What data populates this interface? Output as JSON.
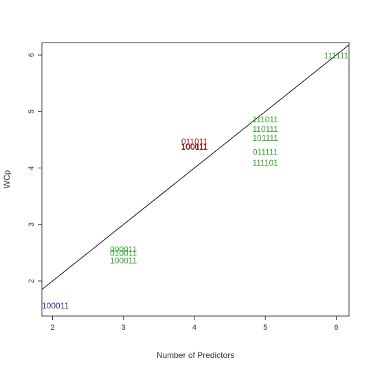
{
  "chart_data": {
    "type": "scatter",
    "title": "",
    "xlabel": "Number of Predictors",
    "ylabel": "WCp",
    "xlim": [
      1.85,
      6.18
    ],
    "ylim": [
      1.38,
      6.22
    ],
    "xticks": [
      "2",
      "3",
      "4",
      "5",
      "6"
    ],
    "yticks": [
      "2",
      "3",
      "4",
      "5",
      "6"
    ],
    "grid": false,
    "legend": "none",
    "reference_line": {
      "from": [
        1.85,
        1.85
      ],
      "to": [
        6.18,
        6.18
      ],
      "color": "#000000"
    },
    "colors": {
      "dark_red": "#8b1a1a",
      "green": "#33a02c",
      "blue": "#2b2b9b"
    },
    "points": [
      {
        "label": "100011",
        "x": 1.85,
        "y": 1.55,
        "color": "#2b2b9b",
        "anchor": "start"
      },
      {
        "label": "000011",
        "x": 3.0,
        "y": 2.55,
        "color": "#33a02c",
        "anchor": "middle"
      },
      {
        "label": "010011",
        "x": 3.0,
        "y": 2.48,
        "color": "#33a02c",
        "anchor": "middle"
      },
      {
        "label": "100011",
        "x": 3.0,
        "y": 2.35,
        "color": "#33a02c",
        "anchor": "middle"
      },
      {
        "label": "011011",
        "x": 4.0,
        "y": 4.46,
        "color": "#8b1a1a",
        "anchor": "middle"
      },
      {
        "label": "100011",
        "x": 4.0,
        "y": 4.37,
        "color": "#8b1a1a",
        "anchor": "middle"
      },
      {
        "label": "100111",
        "x": 4.0,
        "y": 4.36,
        "color": "#8b1a1a",
        "anchor": "middle"
      },
      {
        "label": "111011",
        "x": 5.0,
        "y": 4.85,
        "color": "#33a02c",
        "anchor": "middle"
      },
      {
        "label": "110111",
        "x": 5.0,
        "y": 4.68,
        "color": "#33a02c",
        "anchor": "middle"
      },
      {
        "label": "101111",
        "x": 5.0,
        "y": 4.52,
        "color": "#33a02c",
        "anchor": "middle"
      },
      {
        "label": "011111",
        "x": 5.0,
        "y": 4.27,
        "color": "#33a02c",
        "anchor": "middle"
      },
      {
        "label": "111101",
        "x": 5.0,
        "y": 4.08,
        "color": "#33a02c",
        "anchor": "middle"
      },
      {
        "label": "111111",
        "x": 6.0,
        "y": 5.98,
        "color": "#33a02c",
        "anchor": "middle"
      }
    ]
  }
}
